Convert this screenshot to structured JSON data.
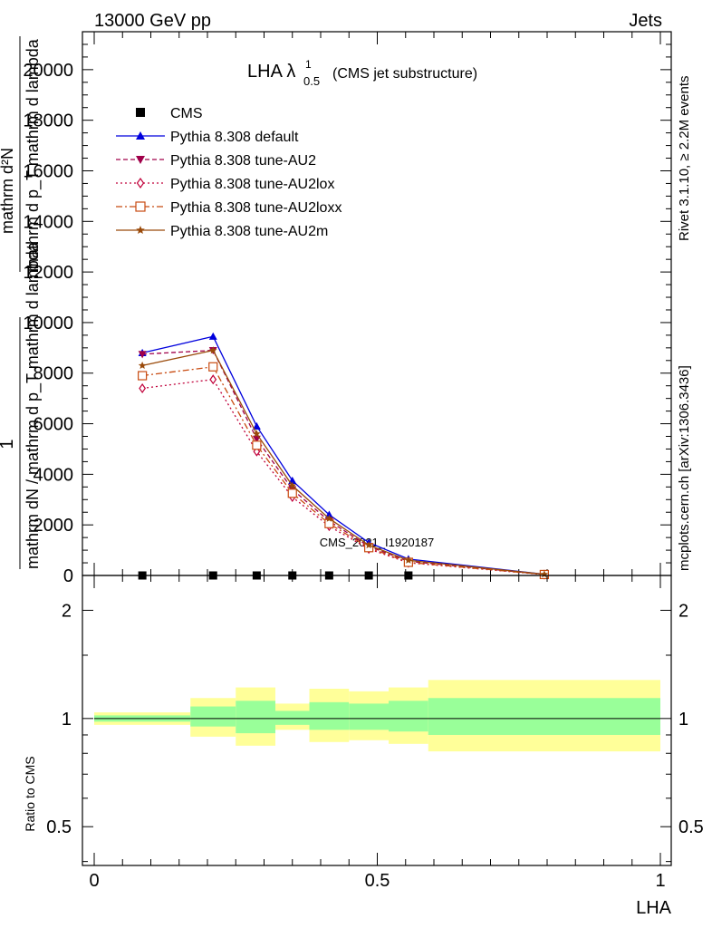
{
  "header": {
    "left": "13000 GeV pp",
    "right": "Jets"
  },
  "side_labels": {
    "rivet": "Rivet 3.1.10, ≥ 2.2M events",
    "mcplots": "mcplots.cern.ch [arXiv:1306.3436]"
  },
  "watermark": "CMS_2021_I1920187",
  "chart_data": [
    {
      "type": "line",
      "title_main": "LHA λ",
      "title_sup": "1",
      "title_sub": "0.5",
      "title_suffix": "(CMS jet substructure)",
      "ylabel_num": "1",
      "ylabel_den": "mathrm dN / mathrm d p_T mathrm d lambda",
      "ylabel_top_num": "mathrm d²N",
      "ylabel_top_den": "mathrm d p_T mathrm d lambda",
      "xlim": [
        0,
        1
      ],
      "ylim": [
        0,
        21500
      ],
      "yticks": [
        0,
        2000,
        4000,
        6000,
        8000,
        10000,
        12000,
        14000,
        16000,
        18000,
        20000
      ],
      "ytick_labels": [
        "0",
        "2000",
        "4000",
        "6000",
        "8000",
        "10000",
        "12000",
        "14000",
        "16000",
        "18000",
        "20000"
      ],
      "legend_position": "top-left",
      "series": [
        {
          "name": "CMS",
          "color": "#000000",
          "marker": "square",
          "line": "none",
          "x": [
            0.085,
            0.21,
            0.287,
            0.35,
            0.415,
            0.485,
            0.555
          ],
          "y": [
            0,
            0,
            0,
            0,
            0,
            0,
            0
          ]
        },
        {
          "name": "Pythia 8.308 default",
          "color": "#0000dd",
          "marker": "triangle-up",
          "line": "solid",
          "x": [
            0.085,
            0.21,
            0.287,
            0.35,
            0.415,
            0.485,
            0.555,
            0.795
          ],
          "y": [
            8800,
            9450,
            5900,
            3750,
            2400,
            1300,
            650,
            50
          ]
        },
        {
          "name": "Pythia 8.308 tune-AU2",
          "color": "#a0004a",
          "marker": "triangle-down",
          "line": "dashed",
          "x": [
            0.085,
            0.21,
            0.287,
            0.35,
            0.415,
            0.485,
            0.555,
            0.795
          ],
          "y": [
            8750,
            8900,
            5400,
            3400,
            2150,
            1150,
            560,
            40
          ]
        },
        {
          "name": "Pythia 8.308 tune-AU2lox",
          "color": "#c0003a",
          "marker": "diamond-open",
          "line": "dotted",
          "x": [
            0.085,
            0.21,
            0.287,
            0.35,
            0.415,
            0.485,
            0.555,
            0.795
          ],
          "y": [
            7400,
            7750,
            4900,
            3100,
            1950,
            1050,
            500,
            35
          ]
        },
        {
          "name": "Pythia 8.308 tune-AU2loxx",
          "color": "#c84a10",
          "marker": "square-open",
          "line": "dashdot",
          "x": [
            0.085,
            0.21,
            0.287,
            0.35,
            0.415,
            0.485,
            0.555,
            0.795
          ],
          "y": [
            7900,
            8250,
            5150,
            3250,
            2050,
            1100,
            520,
            38
          ]
        },
        {
          "name": "Pythia 8.308 tune-AU2m",
          "color": "#9a4a0a",
          "marker": "star",
          "line": "solid",
          "x": [
            0.085,
            0.21,
            0.287,
            0.35,
            0.415,
            0.485,
            0.555,
            0.795
          ],
          "y": [
            8300,
            8900,
            5600,
            3550,
            2250,
            1200,
            600,
            45
          ]
        }
      ]
    },
    {
      "type": "area",
      "ylabel": "Ratio to CMS",
      "xlabel": "LHA",
      "xlim": [
        0,
        1
      ],
      "ylim_log": [
        0.39,
        2.5
      ],
      "yticks": [
        0.5,
        1,
        2
      ],
      "ytick_labels": [
        "0.5",
        "1",
        "2"
      ],
      "xticks": [
        0,
        0.5,
        1
      ],
      "xtick_labels": [
        "0",
        "0.5",
        "1"
      ],
      "reference_line": 1,
      "bands": {
        "bin_edges": [
          0.0,
          0.17,
          0.25,
          0.32,
          0.38,
          0.45,
          0.52,
          0.59,
          1.0
        ],
        "yellow_low": [
          0.96,
          0.89,
          0.84,
          0.93,
          0.86,
          0.87,
          0.85,
          0.81
        ],
        "yellow_high": [
          1.04,
          1.14,
          1.22,
          1.1,
          1.21,
          1.19,
          1.22,
          1.28
        ],
        "green_low": [
          0.98,
          0.95,
          0.91,
          0.96,
          0.93,
          0.93,
          0.92,
          0.9
        ],
        "green_high": [
          1.02,
          1.08,
          1.12,
          1.05,
          1.11,
          1.1,
          1.12,
          1.14
        ],
        "yellow_color": "#ffff99",
        "green_color": "#99ff99"
      }
    }
  ]
}
